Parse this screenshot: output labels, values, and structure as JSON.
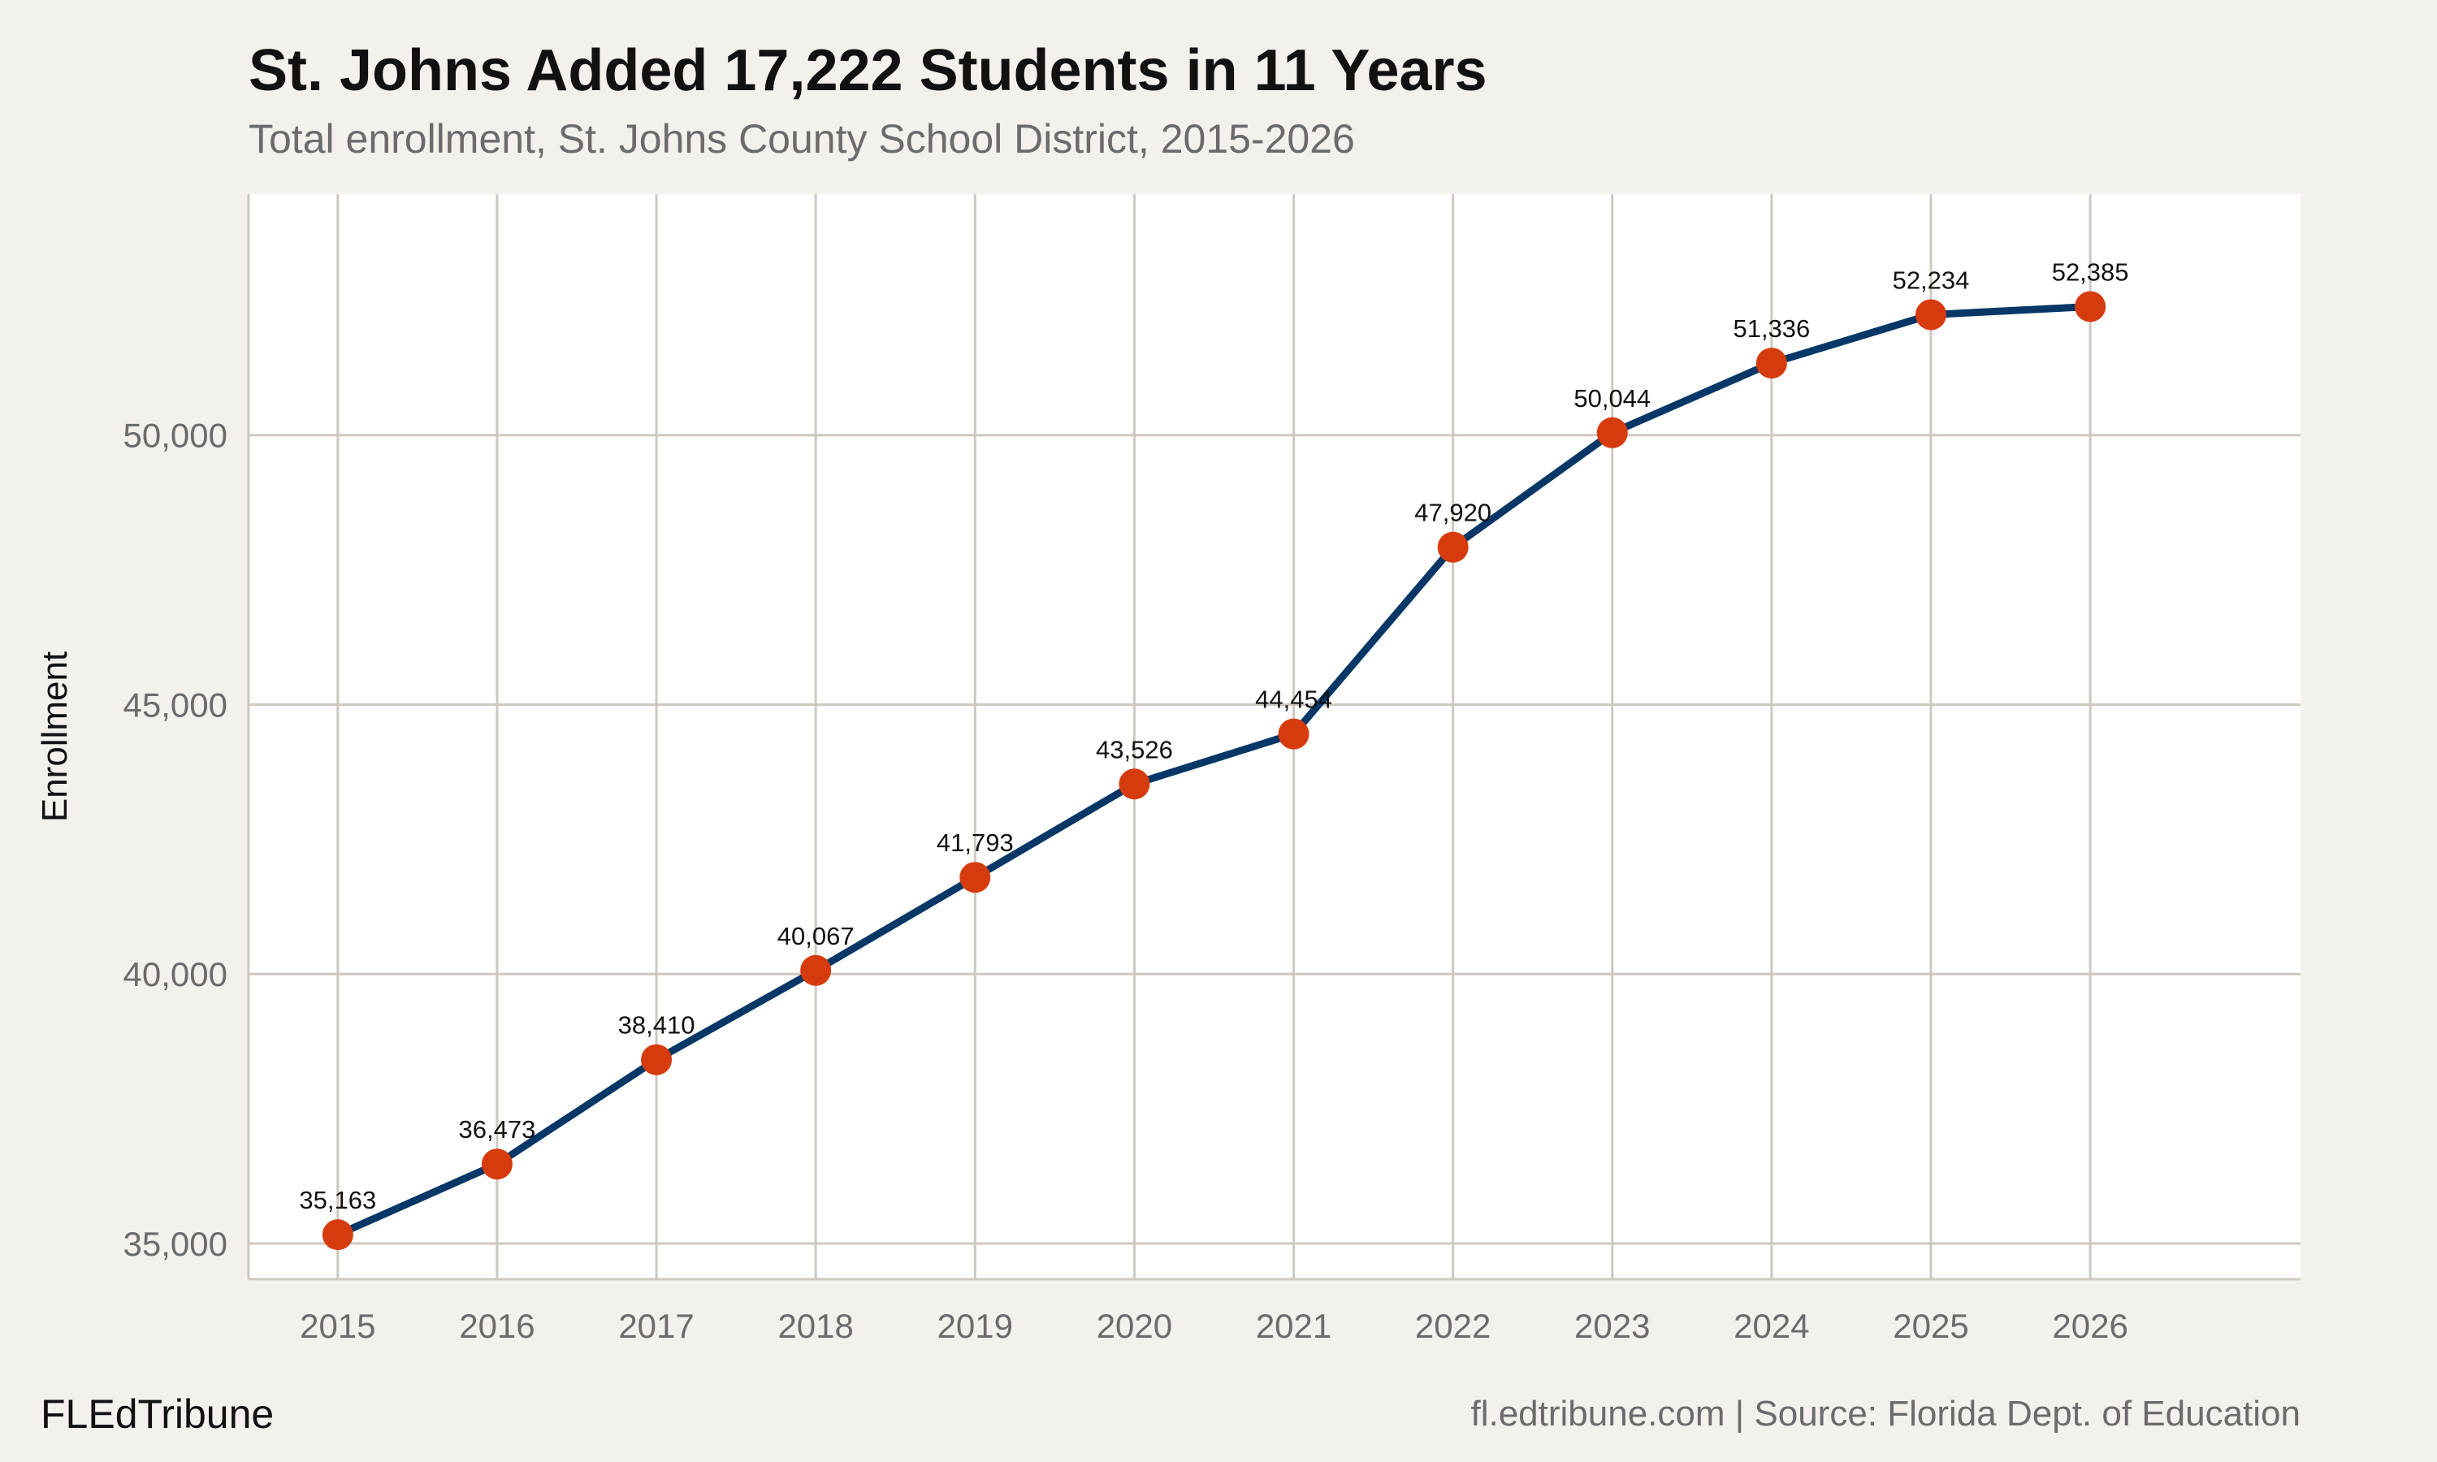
{
  "header": {
    "title": "St. Johns Added 17,222 Students in 11 Years",
    "subtitle": "Total enrollment, St. Johns County School District, 2015-2026"
  },
  "footer": {
    "brand": "FLEdTribune",
    "source": "fl.edtribune.com | Source: Florida Dept. of Education"
  },
  "chart_data": {
    "type": "line",
    "title": "St. Johns Added 17,222 Students in 11 Years",
    "subtitle": "Total enrollment, St. Johns County School District, 2015-2026",
    "xlabel": "",
    "ylabel": "Enrollment",
    "x": [
      2015,
      2016,
      2017,
      2018,
      2019,
      2020,
      2021,
      2022,
      2023,
      2024,
      2025,
      2026
    ],
    "values": [
      35163,
      36473,
      38410,
      40067,
      41793,
      43526,
      44454,
      47920,
      50044,
      51336,
      52234,
      52385
    ],
    "data_labels": [
      "35,163",
      "36,473",
      "38,410",
      "40,067",
      "41,793",
      "43,526",
      "44,454",
      "47,920",
      "50,044",
      "51,336",
      "52,234",
      "52,385"
    ],
    "x_ticks": [
      "2015",
      "2016",
      "2017",
      "2018",
      "2019",
      "2020",
      "2021",
      "2022",
      "2023",
      "2024",
      "2025",
      "2026"
    ],
    "y_ticks": [
      35000,
      40000,
      45000,
      50000
    ],
    "y_tick_labels": [
      "35,000",
      "40,000",
      "45,000",
      "50,000"
    ],
    "xlim": [
      2014.44,
      2027.32
    ],
    "ylim": [
      34336,
      54472
    ],
    "grid": true,
    "legend": "none",
    "colors": {
      "line": "#063766",
      "marker": "#d63b0e",
      "grid": "#cfc8c0",
      "panel": "#ffffff",
      "background": "#f4f1ec"
    }
  }
}
